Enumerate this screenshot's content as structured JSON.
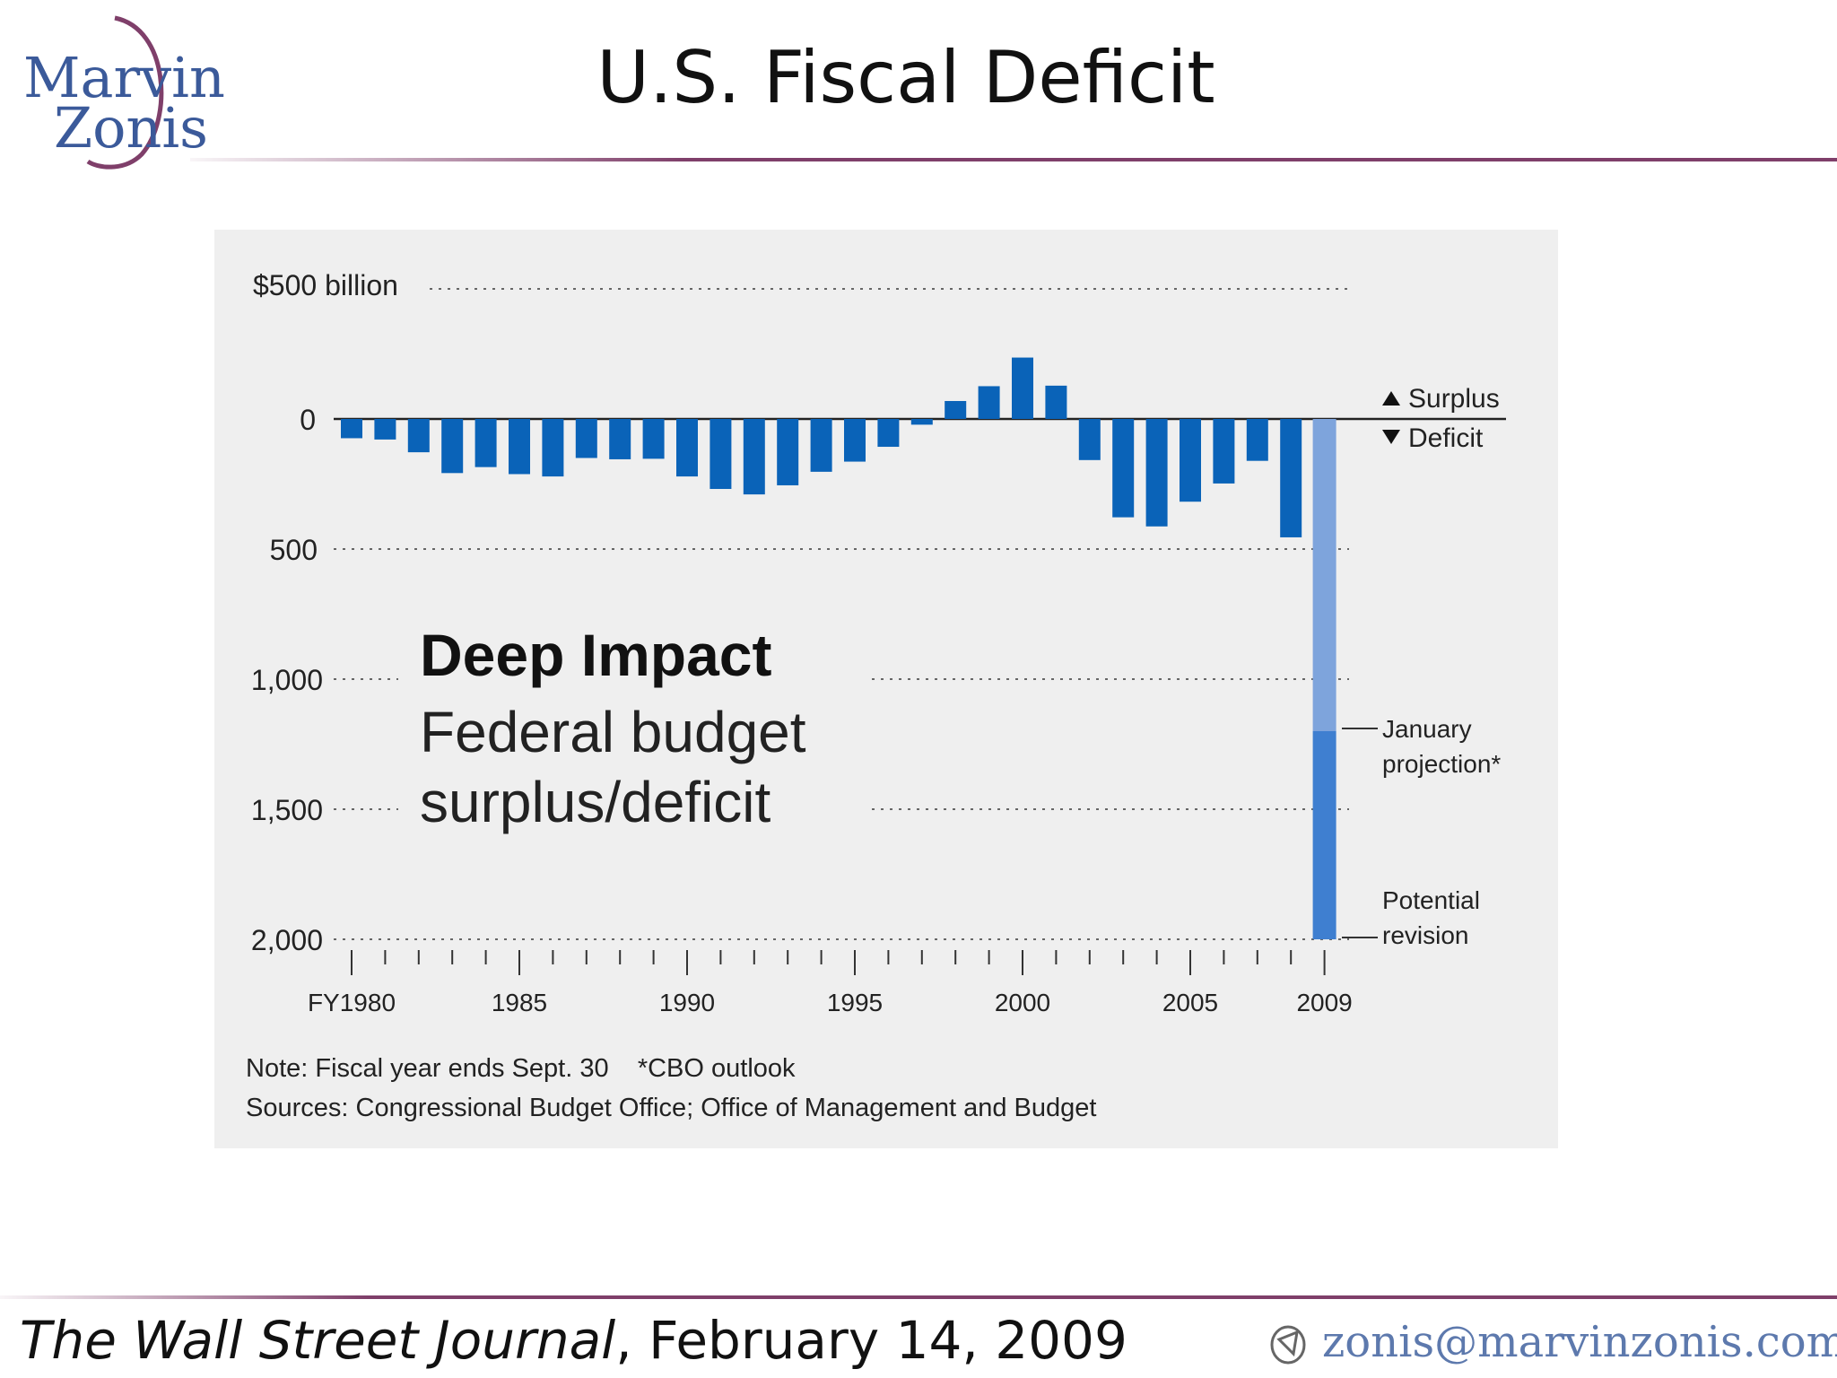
{
  "header": {
    "title": "U.S. Fiscal Deficit",
    "logo": {
      "line1": "Marvin",
      "line2": "Zonis"
    }
  },
  "colors": {
    "bar": "#0a63b8",
    "projection": "#7ea4dc",
    "revision": "#3f7fd0",
    "rule": "#7f3f6a",
    "logo": "#3b5a9a"
  },
  "chart_data": {
    "type": "bar",
    "title": "Deep Impact",
    "subtitle_line1": "Federal budget",
    "subtitle_line2": "surplus/deficit",
    "y_unit_label": "$500 billion",
    "y_tick_labels": [
      "0",
      "500",
      "1,000",
      "1,500",
      "2,000"
    ],
    "ylim": [
      -2000,
      500
    ],
    "x_tick_labels": [
      "FY1980",
      "1985",
      "1990",
      "1995",
      "2000",
      "2005",
      "2009"
    ],
    "x_tick_years": [
      1980,
      1985,
      1990,
      1995,
      2000,
      2005,
      2009
    ],
    "legend_surplus": "Surplus",
    "legend_deficit": "Deficit",
    "years": [
      1980,
      1981,
      1982,
      1983,
      1984,
      1985,
      1986,
      1987,
      1988,
      1989,
      1990,
      1991,
      1992,
      1993,
      1994,
      1995,
      1996,
      1997,
      1998,
      1999,
      2000,
      2001,
      2002,
      2003,
      2004,
      2005,
      2006,
      2007,
      2008
    ],
    "values": [
      -74,
      -79,
      -128,
      -208,
      -185,
      -212,
      -221,
      -150,
      -155,
      -153,
      -221,
      -269,
      -290,
      -255,
      -203,
      -164,
      -107,
      -22,
      69,
      126,
      236,
      128,
      -158,
      -378,
      -413,
      -318,
      -248,
      -161,
      -455
    ],
    "projection_2009": {
      "year": 2009,
      "january_projection": -1200,
      "potential_revision": -2000
    },
    "annotation_january_line1": "January",
    "annotation_january_line2": "projection*",
    "annotation_revision_line1": "Potential",
    "annotation_revision_line2": "revision",
    "note": "Note: Fiscal year ends Sept. 30    *CBO outlook",
    "sources": "Sources: Congressional Budget Office; Office of Management and Budget"
  },
  "footer": {
    "journal": "The Wall Street Journal",
    "date": ", February 14, 2009",
    "email": "zonis@marvinzonis.com"
  }
}
